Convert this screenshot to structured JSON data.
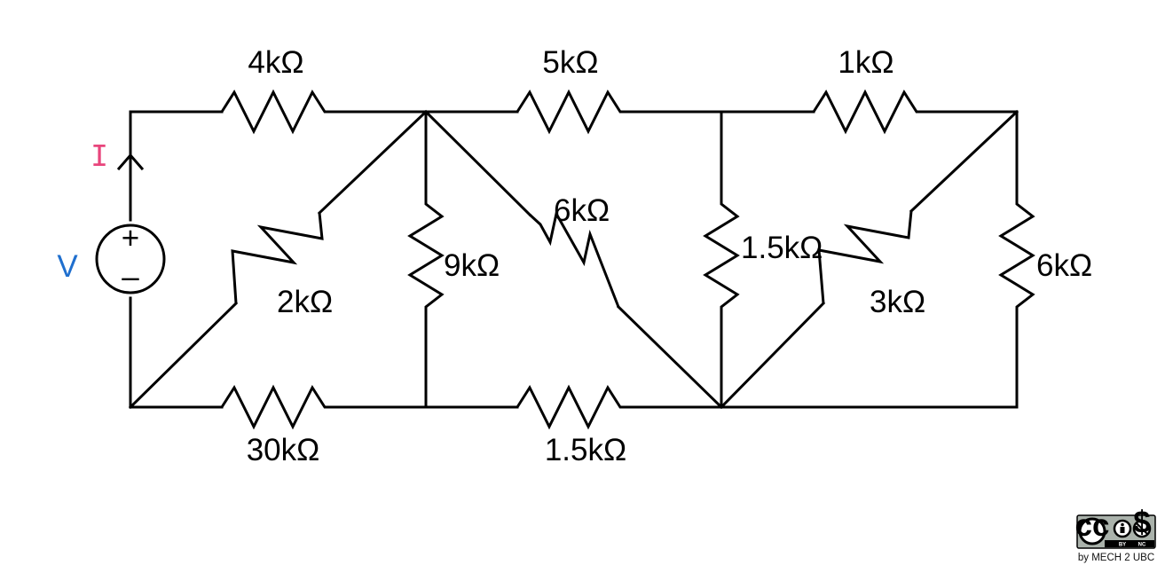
{
  "source": {
    "current_label": "I",
    "voltage_label": "V",
    "plus_sign": "+",
    "minus_sign": "–",
    "current_color": "#e8457c",
    "voltage_color": "#1f6fce"
  },
  "resistors": {
    "r_top_left": "4kΩ",
    "r_top_mid": "5kΩ",
    "r_top_right": "1kΩ",
    "r_diag_2k": "2kΩ",
    "r_vert_9k": "9kΩ",
    "r_diag_6k": "6kΩ",
    "r_vert_1_5k": "1.5kΩ",
    "r_diag_3k": "3kΩ",
    "r_right_6k": "6kΩ",
    "r_bottom_30k": "30kΩ",
    "r_bottom_1_5k": "1.5kΩ"
  },
  "license": {
    "cc": "cc",
    "by": "BY",
    "nc": "NC",
    "credit": "by MECH 2 UBC"
  }
}
